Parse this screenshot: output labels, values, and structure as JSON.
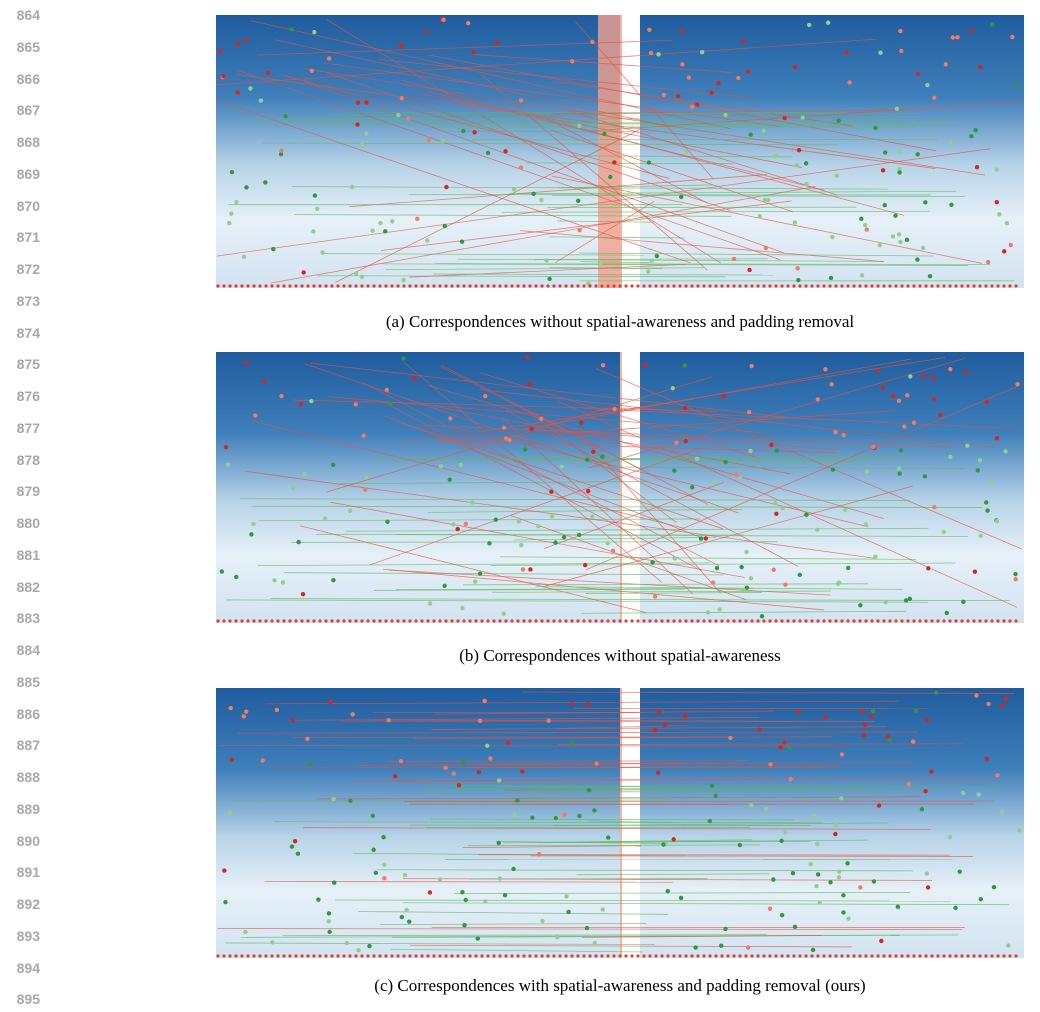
{
  "line_numbers": [
    864,
    865,
    866,
    867,
    868,
    869,
    870,
    871,
    872,
    873,
    874,
    875,
    876,
    877,
    878,
    879,
    880,
    881,
    882,
    883,
    884,
    885,
    886,
    887,
    888,
    889,
    890,
    891,
    892,
    893,
    894,
    895
  ],
  "figures": [
    {
      "caption": "(a) Correspondences without spatial-awareness and padding removal"
    },
    {
      "caption": "(b) Correspondences without spatial-awareness"
    },
    {
      "caption": "(c) Correspondences with spatial-awareness and padding removal (ours)"
    }
  ]
}
